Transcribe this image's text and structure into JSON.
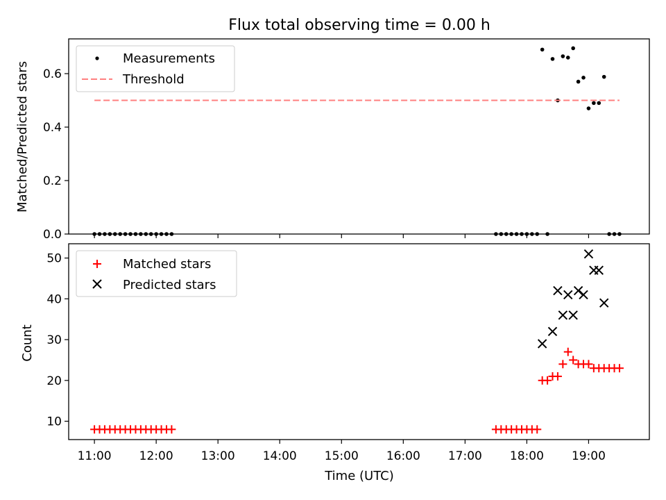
{
  "chart_data": [
    {
      "type": "scatter",
      "title": "Flux total observing time = 0.00 h",
      "xlabel": "",
      "ylabel": "Matched/Predicted stars",
      "xlim": [
        "10:35",
        "19:59"
      ],
      "ylim": [
        0,
        0.73
      ],
      "yticks": [
        0,
        0.2,
        0.4,
        0.6
      ],
      "ytick_labels": [
        "0.0",
        "0.2",
        "0.4",
        "0.6"
      ],
      "xticks": [
        "11:00",
        "12:00",
        "13:00",
        "14:00",
        "15:00",
        "16:00",
        "17:00",
        "18:00",
        "19:00"
      ],
      "grid": false,
      "legend": "upper-left",
      "series": [
        {
          "name": "Measurements",
          "marker": "dot",
          "color": "#000000",
          "points": [
            [
              "11:00",
              0
            ],
            [
              "11:05",
              0
            ],
            [
              "11:10",
              0
            ],
            [
              "11:15",
              0
            ],
            [
              "11:20",
              0
            ],
            [
              "11:25",
              0
            ],
            [
              "11:30",
              0
            ],
            [
              "11:35",
              0
            ],
            [
              "11:40",
              0
            ],
            [
              "11:45",
              0
            ],
            [
              "11:50",
              0
            ],
            [
              "11:55",
              0
            ],
            [
              "12:00",
              0
            ],
            [
              "12:05",
              0
            ],
            [
              "12:10",
              0
            ],
            [
              "12:15",
              0
            ],
            [
              "17:30",
              0
            ],
            [
              "17:35",
              0
            ],
            [
              "17:40",
              0
            ],
            [
              "17:45",
              0
            ],
            [
              "17:50",
              0
            ],
            [
              "17:55",
              0
            ],
            [
              "18:00",
              0
            ],
            [
              "18:05",
              0
            ],
            [
              "18:10",
              0
            ],
            [
              "18:20",
              0
            ],
            [
              "18:15",
              0.69
            ],
            [
              "18:25",
              0.655
            ],
            [
              "18:30",
              0.5
            ],
            [
              "18:35",
              0.665
            ],
            [
              "18:40",
              0.66
            ],
            [
              "18:45",
              0.695
            ],
            [
              "18:50",
              0.57
            ],
            [
              "18:55",
              0.585
            ],
            [
              "19:00",
              0.47
            ],
            [
              "19:05",
              0.49
            ],
            [
              "19:10",
              0.49
            ],
            [
              "19:15",
              0.588
            ],
            [
              "19:20",
              0
            ],
            [
              "19:25",
              0
            ],
            [
              "19:30",
              0
            ]
          ]
        },
        {
          "name": "Threshold",
          "style": "dashed-line",
          "color": "#ff7f7f",
          "points": [
            [
              "11:00",
              0.5
            ],
            [
              "19:30",
              0.5
            ]
          ]
        }
      ]
    },
    {
      "type": "scatter",
      "title": "",
      "xlabel": "Time (UTC)",
      "ylabel": "Count",
      "xlim": [
        "10:35",
        "19:59"
      ],
      "ylim": [
        5.5,
        53.5
      ],
      "yticks": [
        10,
        20,
        30,
        40,
        50
      ],
      "ytick_labels": [
        "10",
        "20",
        "30",
        "40",
        "50"
      ],
      "xticks": [
        "11:00",
        "12:00",
        "13:00",
        "14:00",
        "15:00",
        "16:00",
        "17:00",
        "18:00",
        "19:00"
      ],
      "xtick_labels": [
        "11:00",
        "12:00",
        "13:00",
        "14:00",
        "15:00",
        "16:00",
        "17:00",
        "18:00",
        "19:00"
      ],
      "grid": false,
      "legend": "upper-left",
      "series": [
        {
          "name": "Matched stars",
          "marker": "plus",
          "color": "#ff0000",
          "points": [
            [
              "11:00",
              8
            ],
            [
              "11:05",
              8
            ],
            [
              "11:10",
              8
            ],
            [
              "11:15",
              8
            ],
            [
              "11:20",
              8
            ],
            [
              "11:25",
              8
            ],
            [
              "11:30",
              8
            ],
            [
              "11:35",
              8
            ],
            [
              "11:40",
              8
            ],
            [
              "11:45",
              8
            ],
            [
              "11:50",
              8
            ],
            [
              "11:55",
              8
            ],
            [
              "12:00",
              8
            ],
            [
              "12:05",
              8
            ],
            [
              "12:10",
              8
            ],
            [
              "12:15",
              8
            ],
            [
              "17:30",
              8
            ],
            [
              "17:35",
              8
            ],
            [
              "17:40",
              8
            ],
            [
              "17:45",
              8
            ],
            [
              "17:50",
              8
            ],
            [
              "17:55",
              8
            ],
            [
              "18:00",
              8
            ],
            [
              "18:05",
              8
            ],
            [
              "18:10",
              8
            ],
            [
              "18:15",
              20
            ],
            [
              "18:20",
              20
            ],
            [
              "18:25",
              21
            ],
            [
              "18:30",
              21
            ],
            [
              "18:35",
              24
            ],
            [
              "18:40",
              27
            ],
            [
              "18:45",
              25
            ],
            [
              "18:50",
              24
            ],
            [
              "18:55",
              24
            ],
            [
              "19:00",
              24
            ],
            [
              "19:05",
              23
            ],
            [
              "19:10",
              23
            ],
            [
              "19:15",
              23
            ],
            [
              "19:20",
              23
            ],
            [
              "19:25",
              23
            ],
            [
              "19:30",
              23
            ]
          ]
        },
        {
          "name": "Predicted stars",
          "marker": "x",
          "color": "#000000",
          "points": [
            [
              "18:15",
              29
            ],
            [
              "18:25",
              32
            ],
            [
              "18:30",
              42
            ],
            [
              "18:35",
              36
            ],
            [
              "18:40",
              41
            ],
            [
              "18:45",
              36
            ],
            [
              "18:50",
              42
            ],
            [
              "18:55",
              41
            ],
            [
              "19:00",
              51
            ],
            [
              "19:05",
              47
            ],
            [
              "19:10",
              47
            ],
            [
              "19:15",
              39
            ]
          ]
        }
      ]
    }
  ]
}
